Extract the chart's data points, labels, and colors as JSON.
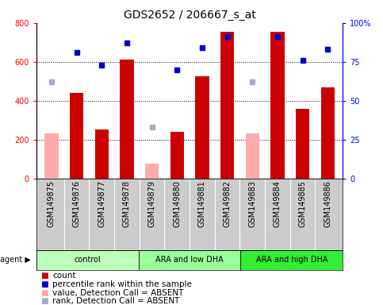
{
  "title": "GDS2652 / 206667_s_at",
  "samples": [
    "GSM149875",
    "GSM149876",
    "GSM149877",
    "GSM149878",
    "GSM149879",
    "GSM149880",
    "GSM149881",
    "GSM149882",
    "GSM149883",
    "GSM149884",
    "GSM149885",
    "GSM149886"
  ],
  "groups": [
    {
      "label": "control",
      "color": "#bbffbb",
      "start": 0,
      "end": 4
    },
    {
      "label": "ARA and low DHA",
      "color": "#99ff99",
      "start": 4,
      "end": 8
    },
    {
      "label": "ARA and high DHA",
      "color": "#33ee33",
      "start": 8,
      "end": 12
    }
  ],
  "count_values": [
    null,
    440,
    250,
    610,
    null,
    240,
    525,
    755,
    null,
    755,
    360,
    470
  ],
  "count_absent": [
    230,
    null,
    null,
    null,
    75,
    null,
    null,
    null,
    230,
    null,
    null,
    null
  ],
  "rank_values": [
    null,
    81,
    73,
    87,
    null,
    70,
    84,
    91,
    null,
    91,
    76,
    83
  ],
  "rank_absent": [
    62,
    null,
    null,
    null,
    33,
    null,
    null,
    null,
    62,
    null,
    null,
    null
  ],
  "ylim_left": [
    0,
    800
  ],
  "ylim_right": [
    0,
    100
  ],
  "yticks_left": [
    0,
    200,
    400,
    600,
    800
  ],
  "yticks_right": [
    0,
    25,
    50,
    75,
    100
  ],
  "bar_color": "#cc0000",
  "bar_absent_color": "#ffaaaa",
  "dot_color": "#0000cc",
  "dot_absent_color": "#aaaacc",
  "grid_color": "black",
  "sample_bg_color": "#cccccc",
  "title_fontsize": 10,
  "tick_fontsize": 7,
  "label_fontsize": 7,
  "legend_fontsize": 7.5,
  "bar_width": 0.55
}
